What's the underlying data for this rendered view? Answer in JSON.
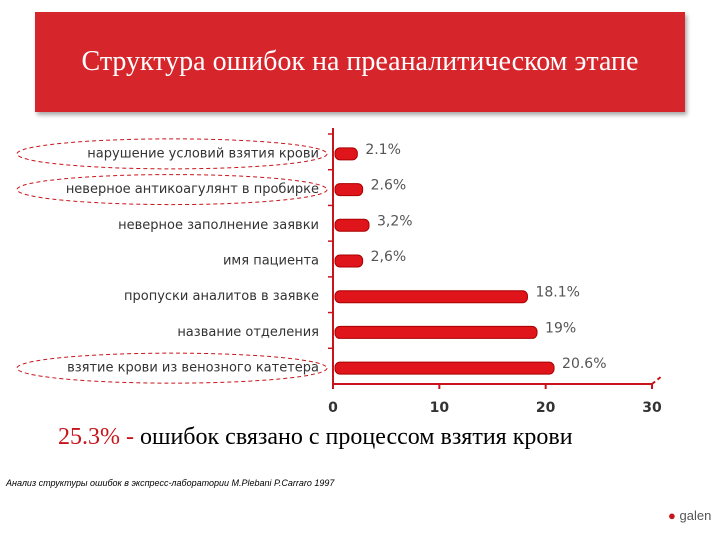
{
  "chart_data": {
    "type": "bar",
    "orientation": "horizontal",
    "title": "Структура ошибок на преаналитическом этапе",
    "categories": [
      "нарушение условий взятия крови",
      "неверное антикоагулянт в пробирке",
      "неверное заполнение заявки",
      "имя пациента",
      "пропуски аналитов в заявке",
      "название отделения",
      "взятие крови из венозного катетера"
    ],
    "values": [
      2.1,
      2.6,
      3.2,
      2.6,
      18.1,
      19,
      20.6
    ],
    "value_labels": [
      "2.1%",
      "2.6%",
      "3,2%",
      "2,6%",
      "18.1%",
      "19%",
      "20.6%"
    ],
    "color": "#e0151b",
    "xlim": [
      0,
      30
    ],
    "xticks": [
      0,
      10,
      20,
      30
    ],
    "grid": false,
    "annotation_highlight": "25.3% -",
    "annotation": "ошибок связано с процессом взятия крови",
    "footnote": "Анализ структуры ошибок в экспресс-лаборатории M.Plebani P.Carraro 1997",
    "logo": "galen"
  }
}
